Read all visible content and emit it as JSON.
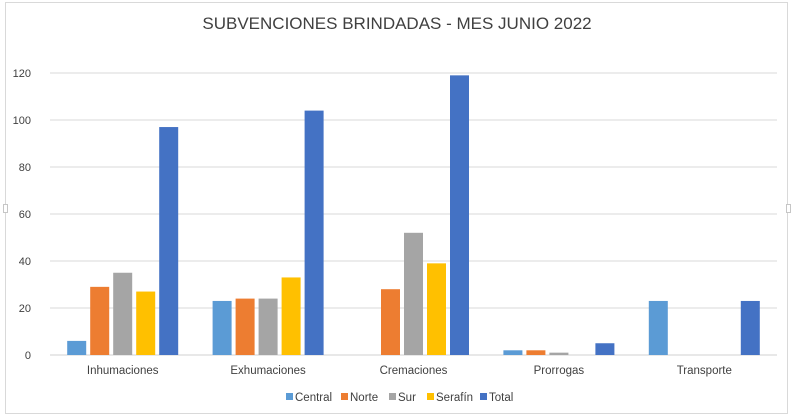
{
  "chart_data": {
    "type": "bar",
    "title": "SUBVENCIONES BRINDADAS - MES JUNIO 2022",
    "xlabel": "",
    "ylabel": "",
    "ylim": [
      0,
      120
    ],
    "yticks": [
      0,
      20,
      40,
      60,
      80,
      100,
      120
    ],
    "grid": true,
    "legend_position": "bottom",
    "categories": [
      "Inhumaciones",
      "Exhumaciones",
      "Cremaciones",
      "Prorrogas",
      "Transporte"
    ],
    "series": [
      {
        "name": "Central",
        "color": "#5b9bd5",
        "values": [
          6,
          23,
          0,
          2,
          23
        ]
      },
      {
        "name": "Norte",
        "color": "#ed7d31",
        "values": [
          29,
          24,
          28,
          2,
          0
        ]
      },
      {
        "name": "Sur",
        "color": "#a5a5a5",
        "values": [
          35,
          24,
          52,
          1,
          0
        ]
      },
      {
        "name": "Serafín",
        "color": "#ffc000",
        "values": [
          27,
          33,
          39,
          0,
          0
        ]
      },
      {
        "name": "Total",
        "color": "#4472c4",
        "values": [
          97,
          104,
          119,
          5,
          23
        ]
      }
    ]
  }
}
